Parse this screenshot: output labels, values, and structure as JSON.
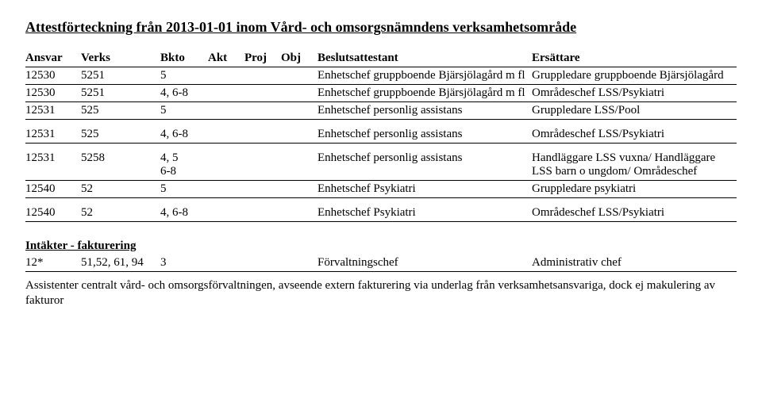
{
  "title": "Attestförteckning från 2013-01-01  inom Vård- och omsorgsnämndens verksamhetsområde",
  "headers": {
    "ansvar": "Ansvar",
    "verks": "Verks",
    "bkto": "Bkto",
    "akt": "Akt",
    "proj": "Proj",
    "obj": "Obj",
    "beslutsattestant": "Beslutsattestant",
    "ersattare": "Ersättare"
  },
  "rows": [
    {
      "rule": true,
      "ansvar": "12530",
      "verks": "5251",
      "bkto": "5",
      "beslutsattestant": "Enhetschef gruppboende Bjärsjölagård m fl",
      "ersattare": "Gruppledare gruppboende Bjärsjölagård"
    },
    {
      "rule": true,
      "ansvar": "12530",
      "verks": "5251",
      "bkto": "4, 6-8",
      "beslutsattestant": "Enhetschef gruppboende Bjärsjölagård m fl",
      "ersattare": "Områdeschef LSS/Psykiatri"
    },
    {
      "rule": true,
      "ansvar": "12531",
      "verks": "525",
      "bkto": "5",
      "beslutsattestant": "Enhetschef personlig assistans",
      "ersattare": "Gruppledare LSS/Pool"
    },
    {
      "rule": true,
      "gap": true,
      "ansvar": "12531",
      "verks": "525",
      "bkto": "4, 6-8",
      "beslutsattestant": "Enhetschef personlig assistans",
      "ersattare": "Områdeschef LSS/Psykiatri"
    },
    {
      "rule": true,
      "gap": true,
      "ansvar": "12531",
      "verks": "5258",
      "bkto": "4, 5",
      "bkto2": "6-8",
      "beslutsattestant": "Enhetschef personlig assistans",
      "ersattare": "Handläggare LSS vuxna/ Handläggare LSS barn o ungdom/ Områdeschef"
    },
    {
      "rule": true,
      "ansvar": "12540",
      "verks": "52",
      "bkto": "5",
      "beslutsattestant": "Enhetschef  Psykiatri",
      "ersattare": "Gruppledare psykiatri"
    },
    {
      "rule": true,
      "gap": true,
      "ansvar": "12540",
      "verks": "52",
      "bkto": "4, 6-8",
      "beslutsattestant": "Enhetschef  Psykiatri",
      "ersattare": "Områdeschef LSS/Psykiatri"
    }
  ],
  "section2": {
    "heading": "Intäkter - fakturering",
    "row": {
      "ansvar": "12*",
      "verks": "51,52, 61, 94",
      "bkto": "3",
      "beslutsattestant": "Förvaltningschef",
      "ersattare": "Administrativ chef"
    },
    "note": "Assistenter centralt vård- och omsorgsförvaltningen, avseende extern fakturering via underlag från verksamhetsansvariga, dock ej makulering av fakturor"
  }
}
